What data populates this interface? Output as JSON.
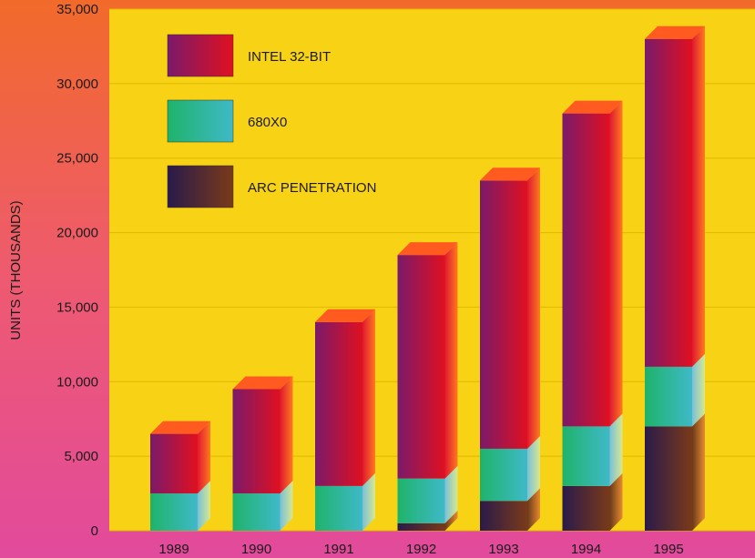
{
  "chart_data": {
    "type": "bar",
    "stacked": true,
    "categories": [
      "1989",
      "1990",
      "1991",
      "1992",
      "1993",
      "1994",
      "1995"
    ],
    "series": [
      {
        "name": "ARC PENETRATION",
        "color": "#5a2a2a",
        "values": [
          0,
          0,
          0,
          500,
          2000,
          3000,
          7000
        ]
      },
      {
        "name": "680X0",
        "color": "#2bb7a0",
        "values": [
          2500,
          2500,
          3000,
          3000,
          3500,
          4000,
          4000
        ]
      },
      {
        "name": "INTEL 32-BIT",
        "color": "#c81038",
        "values": [
          4000,
          7000,
          11000,
          15000,
          18000,
          21000,
          22000
        ]
      }
    ],
    "legend_order": [
      "INTEL 32-BIT",
      "680X0",
      "ARC PENETRATION"
    ],
    "xlabel": "",
    "ylabel": "UNITS (THOUSANDS)",
    "ylim": [
      0,
      35000
    ],
    "yticks": [
      "0",
      "5,000",
      "10,000",
      "15,000",
      "20,000",
      "25,000",
      "30,000",
      "35,000"
    ],
    "ytick_values": [
      0,
      5000,
      10000,
      15000,
      20000,
      25000,
      30000,
      35000
    ],
    "grid": true,
    "legend_position": "top-left",
    "background_color": "#f8d315",
    "outer_color": "#e8508a"
  }
}
